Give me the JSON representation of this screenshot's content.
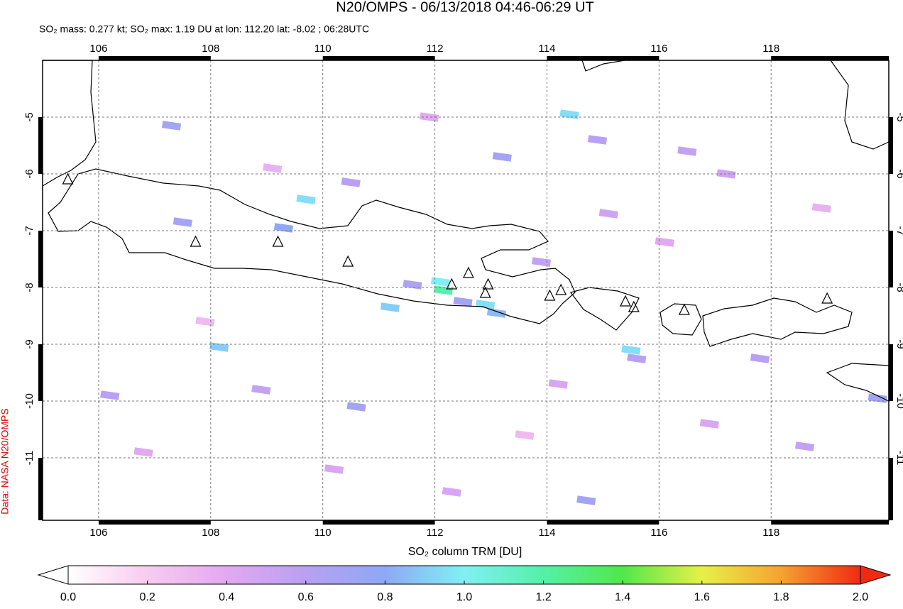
{
  "chart_data": {
    "type": "map",
    "title": "N20/OMPS - 06/13/2018 04:46-06:29 UT",
    "subtitle": "SO₂ mass: 0.277 kt; SO₂ max: 1.19 DU at lon: 112.20 lat: -8.02 ; 06:28UTC",
    "source_label": "Data: NASA N20/OMPS",
    "colorbar_label": "SO₂ column TRM [DU]",
    "xlim": [
      105,
      120.1
    ],
    "ylim": [
      -12.1,
      -4.0
    ],
    "xticks": [
      106,
      108,
      110,
      112,
      114,
      116,
      118
    ],
    "yticks": [
      -5,
      -6,
      -7,
      -8,
      -9,
      -10,
      -11
    ],
    "grid": true,
    "colorbar_lim": [
      0,
      2
    ],
    "colorbar_ticks": [
      {
        "value": 0,
        "label": "0.0"
      },
      {
        "value": 0.2,
        "label": "0.2"
      },
      {
        "value": 0.4,
        "label": "0.4"
      },
      {
        "value": 0.6,
        "label": "0.6"
      },
      {
        "value": 0.8,
        "label": "0.8"
      },
      {
        "value": 1,
        "label": "1.0"
      },
      {
        "value": 1.2,
        "label": "1.2"
      },
      {
        "value": 1.4,
        "label": "1.4"
      },
      {
        "value": 1.6,
        "label": "1.6"
      },
      {
        "value": 1.8,
        "label": "1.8"
      },
      {
        "value": 2,
        "label": "2.0"
      }
    ],
    "colormap": [
      "#ffffff",
      "#f8cbf0",
      "#e3a8f2",
      "#b9a0f2",
      "#8ea8f5",
      "#80f0f5",
      "#55f0a8",
      "#50e84a",
      "#e8f048",
      "#f5a232",
      "#f02a12"
    ],
    "pixels": {
      "lon": [
        112.15,
        112.1,
        112.9,
        111.2,
        114.4,
        109.7,
        115.5,
        108.15,
        113.1,
        112.5,
        111.6,
        107.3,
        109.3,
        113.2,
        114.9,
        116.5,
        119.9,
        110.6,
        114.7,
        110.5,
        107.5,
        115.6,
        117.8,
        106.2,
        108.9,
        113.9,
        117.2,
        118.6,
        110.2,
        112.3,
        115.1,
        116.9,
        106.8,
        109.1,
        111.9,
        114.2,
        118.9,
        107.9,
        113.6,
        116.1
      ],
      "lat": [
        -8.05,
        -7.9,
        -8.3,
        -8.35,
        -4.95,
        -6.45,
        -9.1,
        -9.05,
        -8.45,
        -8.25,
        -7.95,
        -5.15,
        -6.95,
        -5.7,
        -5.4,
        -5.6,
        -9.95,
        -10.1,
        -11.75,
        -6.15,
        -6.85,
        -9.25,
        -9.25,
        -9.9,
        -9.8,
        -7.55,
        -6.0,
        -10.8,
        -11.2,
        -11.6,
        -6.7,
        -10.4,
        -10.9,
        -5.9,
        -5.0,
        -9.7,
        -6.6,
        -8.6,
        -10.6,
        -7.2
      ],
      "values": [
        1.19,
        1.0,
        0.95,
        0.9,
        0.95,
        0.95,
        0.95,
        0.9,
        0.85,
        0.7,
        0.65,
        0.7,
        0.8,
        0.7,
        0.6,
        0.55,
        0.7,
        0.7,
        0.7,
        0.6,
        0.7,
        0.6,
        0.6,
        0.6,
        0.55,
        0.55,
        0.5,
        0.55,
        0.45,
        0.45,
        0.5,
        0.45,
        0.4,
        0.35,
        0.4,
        0.45,
        0.35,
        0.3,
        0.3,
        0.4
      ]
    },
    "volcanoes": {
      "lon": [
        105.45,
        107.73,
        109.2,
        110.45,
        112.3,
        112.6,
        112.95,
        112.9,
        114.05,
        114.25,
        115.4,
        115.55,
        116.45,
        119.0
      ],
      "lat": [
        -6.1,
        -7.2,
        -7.2,
        -7.55,
        -7.95,
        -7.75,
        -7.95,
        -8.1,
        -8.15,
        -8.05,
        -8.25,
        -8.35,
        -8.4,
        -8.2
      ]
    }
  }
}
